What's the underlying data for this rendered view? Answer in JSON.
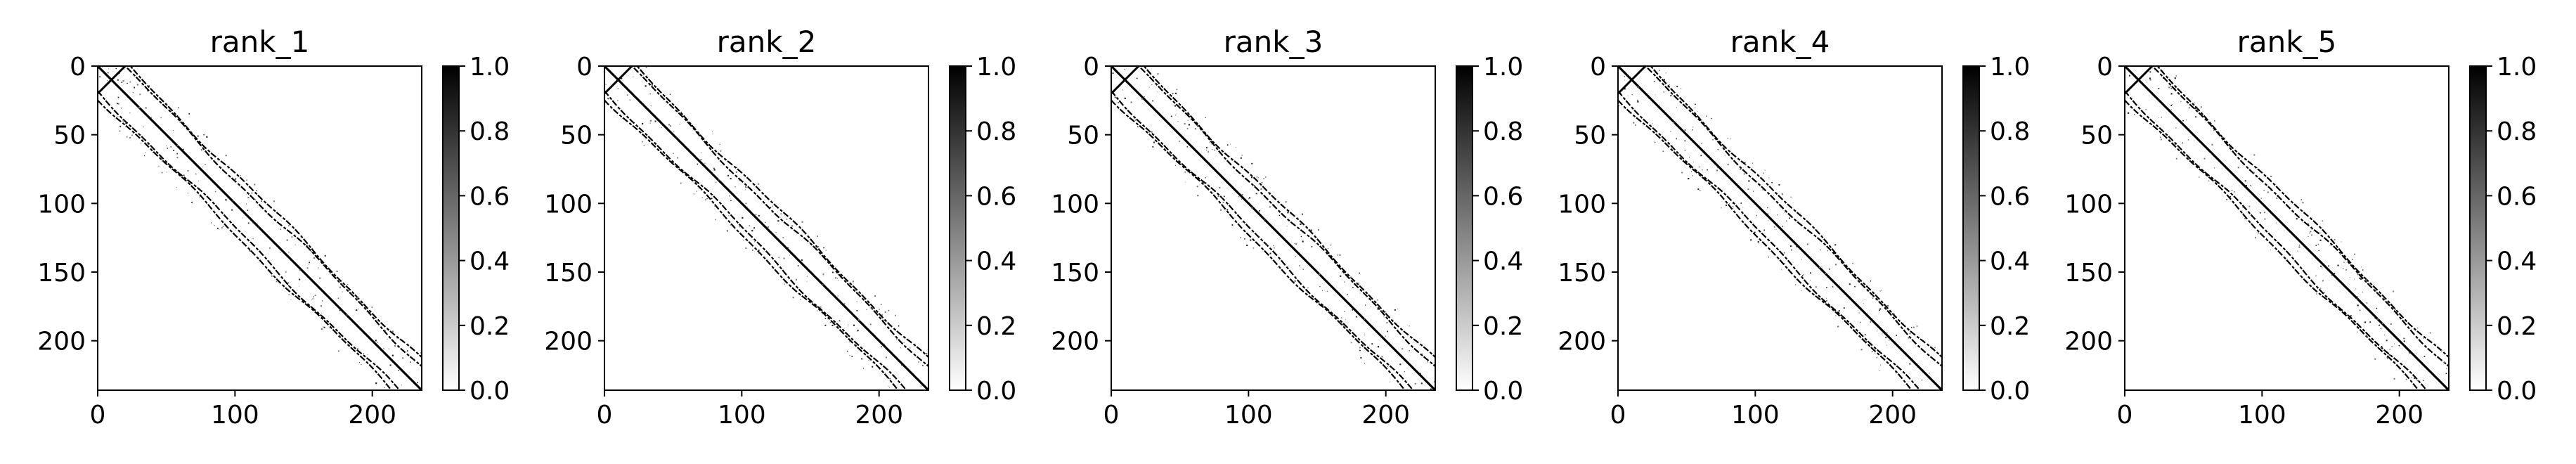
{
  "chart_data": [
    {
      "type": "heatmap",
      "title": "rank_1",
      "matrix_size": 236,
      "x_ticks": [
        0,
        100,
        200
      ],
      "y_ticks": [
        0,
        50,
        100,
        150,
        200
      ],
      "xlim": [
        0,
        236
      ],
      "ylim": [
        236,
        0
      ],
      "colormap": "gray_r",
      "colorbar": {
        "range": [
          0.0,
          1.0
        ],
        "ticks": [
          "0.0",
          "0.2",
          "0.4",
          "0.6",
          "0.8",
          "1.0"
        ]
      },
      "pattern": {
        "main_diagonal": {
          "offset": 0,
          "value": 1.0
        },
        "bands": [
          {
            "offset": 18,
            "value": 1.0
          },
          {
            "offset": 22,
            "value": 1.0
          },
          {
            "offset": -18,
            "value": 1.0
          },
          {
            "offset": -22,
            "value": 1.0
          }
        ],
        "anti_diagonal_cross": {
          "range": [
            0,
            20
          ],
          "value": 1.0
        }
      }
    },
    {
      "type": "heatmap",
      "title": "rank_2",
      "matrix_size": 236,
      "x_ticks": [
        0,
        100,
        200
      ],
      "y_ticks": [
        0,
        50,
        100,
        150,
        200
      ],
      "xlim": [
        0,
        236
      ],
      "ylim": [
        236,
        0
      ],
      "colormap": "gray_r",
      "colorbar": {
        "range": [
          0.0,
          1.0
        ],
        "ticks": [
          "0.0",
          "0.2",
          "0.4",
          "0.6",
          "0.8",
          "1.0"
        ]
      },
      "pattern": {
        "main_diagonal": {
          "offset": 0,
          "value": 1.0
        },
        "bands": [
          {
            "offset": 18,
            "value": 1.0
          },
          {
            "offset": 22,
            "value": 1.0
          },
          {
            "offset": -18,
            "value": 1.0
          },
          {
            "offset": -22,
            "value": 1.0
          }
        ],
        "anti_diagonal_cross": {
          "range": [
            0,
            20
          ],
          "value": 1.0
        }
      }
    },
    {
      "type": "heatmap",
      "title": "rank_3",
      "matrix_size": 236,
      "x_ticks": [
        0,
        100,
        200
      ],
      "y_ticks": [
        0,
        50,
        100,
        150,
        200
      ],
      "xlim": [
        0,
        236
      ],
      "ylim": [
        236,
        0
      ],
      "colormap": "gray_r",
      "colorbar": {
        "range": [
          0.0,
          1.0
        ],
        "ticks": [
          "0.0",
          "0.2",
          "0.4",
          "0.6",
          "0.8",
          "1.0"
        ]
      },
      "pattern": {
        "main_diagonal": {
          "offset": 0,
          "value": 1.0
        },
        "bands": [
          {
            "offset": 18,
            "value": 1.0
          },
          {
            "offset": 22,
            "value": 1.0
          },
          {
            "offset": -18,
            "value": 1.0
          },
          {
            "offset": -22,
            "value": 1.0
          }
        ],
        "anti_diagonal_cross": {
          "range": [
            0,
            20
          ],
          "value": 1.0
        }
      }
    },
    {
      "type": "heatmap",
      "title": "rank_4",
      "matrix_size": 236,
      "x_ticks": [
        0,
        100,
        200
      ],
      "y_ticks": [
        0,
        50,
        100,
        150,
        200
      ],
      "xlim": [
        0,
        236
      ],
      "ylim": [
        236,
        0
      ],
      "colormap": "gray_r",
      "colorbar": {
        "range": [
          0.0,
          1.0
        ],
        "ticks": [
          "0.0",
          "0.2",
          "0.4",
          "0.6",
          "0.8",
          "1.0"
        ]
      },
      "pattern": {
        "main_diagonal": {
          "offset": 0,
          "value": 1.0
        },
        "bands": [
          {
            "offset": 18,
            "value": 1.0
          },
          {
            "offset": 22,
            "value": 1.0
          },
          {
            "offset": -18,
            "value": 1.0
          },
          {
            "offset": -22,
            "value": 1.0
          }
        ],
        "anti_diagonal_cross": {
          "range": [
            0,
            20
          ],
          "value": 1.0
        }
      }
    },
    {
      "type": "heatmap",
      "title": "rank_5",
      "matrix_size": 236,
      "x_ticks": [
        0,
        100,
        200
      ],
      "y_ticks": [
        0,
        50,
        100,
        150,
        200
      ],
      "xlim": [
        0,
        236
      ],
      "ylim": [
        236,
        0
      ],
      "colormap": "gray_r",
      "colorbar": {
        "range": [
          0.0,
          1.0
        ],
        "ticks": [
          "0.0",
          "0.2",
          "0.4",
          "0.6",
          "0.8",
          "1.0"
        ]
      },
      "pattern": {
        "main_diagonal": {
          "offset": 0,
          "value": 1.0
        },
        "bands": [
          {
            "offset": 18,
            "value": 1.0
          },
          {
            "offset": 22,
            "value": 1.0
          },
          {
            "offset": -18,
            "value": 1.0
          },
          {
            "offset": -22,
            "value": 1.0
          }
        ],
        "anti_diagonal_cross": {
          "range": [
            0,
            20
          ],
          "value": 1.0
        }
      }
    }
  ]
}
